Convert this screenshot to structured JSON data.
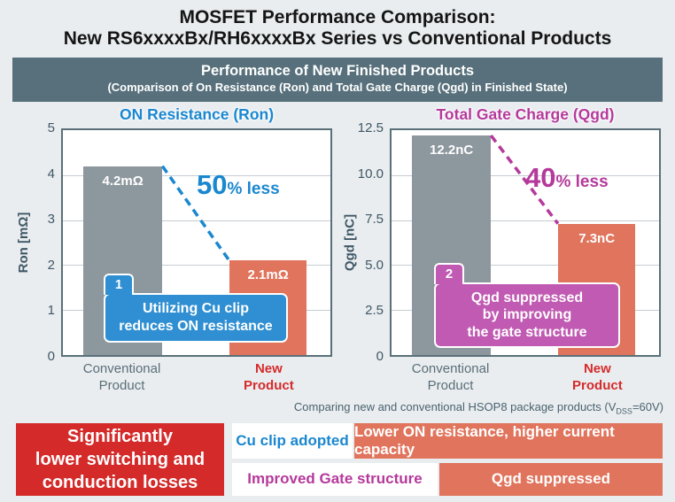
{
  "title": {
    "line1": "MOSFET Performance Comparison:",
    "line2": "New RS6xxxxBx/RH6xxxxBx Series vs Conventional Products"
  },
  "banner": {
    "line1": "Performance of New Finished Products",
    "line2": "(Comparison of On Resistance (Ron) and Total Gate Charge (Qgd) in Finished State)"
  },
  "chart_data": [
    {
      "type": "bar",
      "title": "ON Resistance (Ron)",
      "ylabel": "Ron [mΩ]",
      "ylim": [
        0,
        5
      ],
      "yticks": [
        "5",
        "4",
        "3",
        "2",
        "1",
        "0"
      ],
      "categories": [
        "Conventional Product",
        "New Product"
      ],
      "category_lines": [
        [
          "Conventional",
          "Product"
        ],
        [
          "New",
          "Product"
        ]
      ],
      "values": [
        4.2,
        2.1
      ],
      "bar_labels": [
        "4.2mΩ",
        "2.1mΩ"
      ],
      "reduction": {
        "big": "50",
        "small": "% less"
      },
      "callout": {
        "number": "1",
        "line1": "Utilizing Cu clip",
        "line2": "reduces ON resistance",
        "line3": ""
      },
      "grid": true,
      "legend": "none"
    },
    {
      "type": "bar",
      "title": "Total Gate Charge (Qgd)",
      "ylabel": "Qgd [nC]",
      "ylim": [
        0,
        12.5
      ],
      "yticks": [
        "12.5",
        "10.0",
        "7.5",
        "5.0",
        "2.5",
        "0"
      ],
      "categories": [
        "Conventional Product",
        "New Product"
      ],
      "category_lines": [
        [
          "Conventional",
          "Product"
        ],
        [
          "New",
          "Product"
        ]
      ],
      "values": [
        12.2,
        7.3
      ],
      "bar_labels": [
        "12.2nC",
        "7.3nC"
      ],
      "reduction": {
        "big": "40",
        "small": "% less"
      },
      "callout": {
        "number": "2",
        "line1": "Qgd suppressed",
        "line2": "by improving",
        "line3": "the gate structure"
      },
      "grid": true,
      "legend": "none"
    }
  ],
  "footnote": {
    "prefix": "Comparing new and conventional HSOP8 package products (V",
    "sub": "DSS",
    "suffix": "=60V)"
  },
  "summary": {
    "red_box": {
      "line1": "Significantly",
      "line2": "lower switching and",
      "line3": "conduction losses"
    },
    "rows": [
      {
        "label": "Cu clip adopted",
        "result": "Lower ON resistance, higher current capacity"
      },
      {
        "label": "Improved Gate structure",
        "result": "Qgd suppressed"
      }
    ]
  },
  "colors": {
    "background": "#e9edf0",
    "banner_bg": "#57707b",
    "bar_conventional": "#8d979e",
    "bar_new": "#e0745c",
    "blue_accent": "#1a87cf",
    "magenta_accent": "#b5399b",
    "callout_blue": "#2f8fd2",
    "callout_magenta": "#c05ab2",
    "summary_red": "#d42a2a",
    "axis_text": "#3f5765"
  }
}
